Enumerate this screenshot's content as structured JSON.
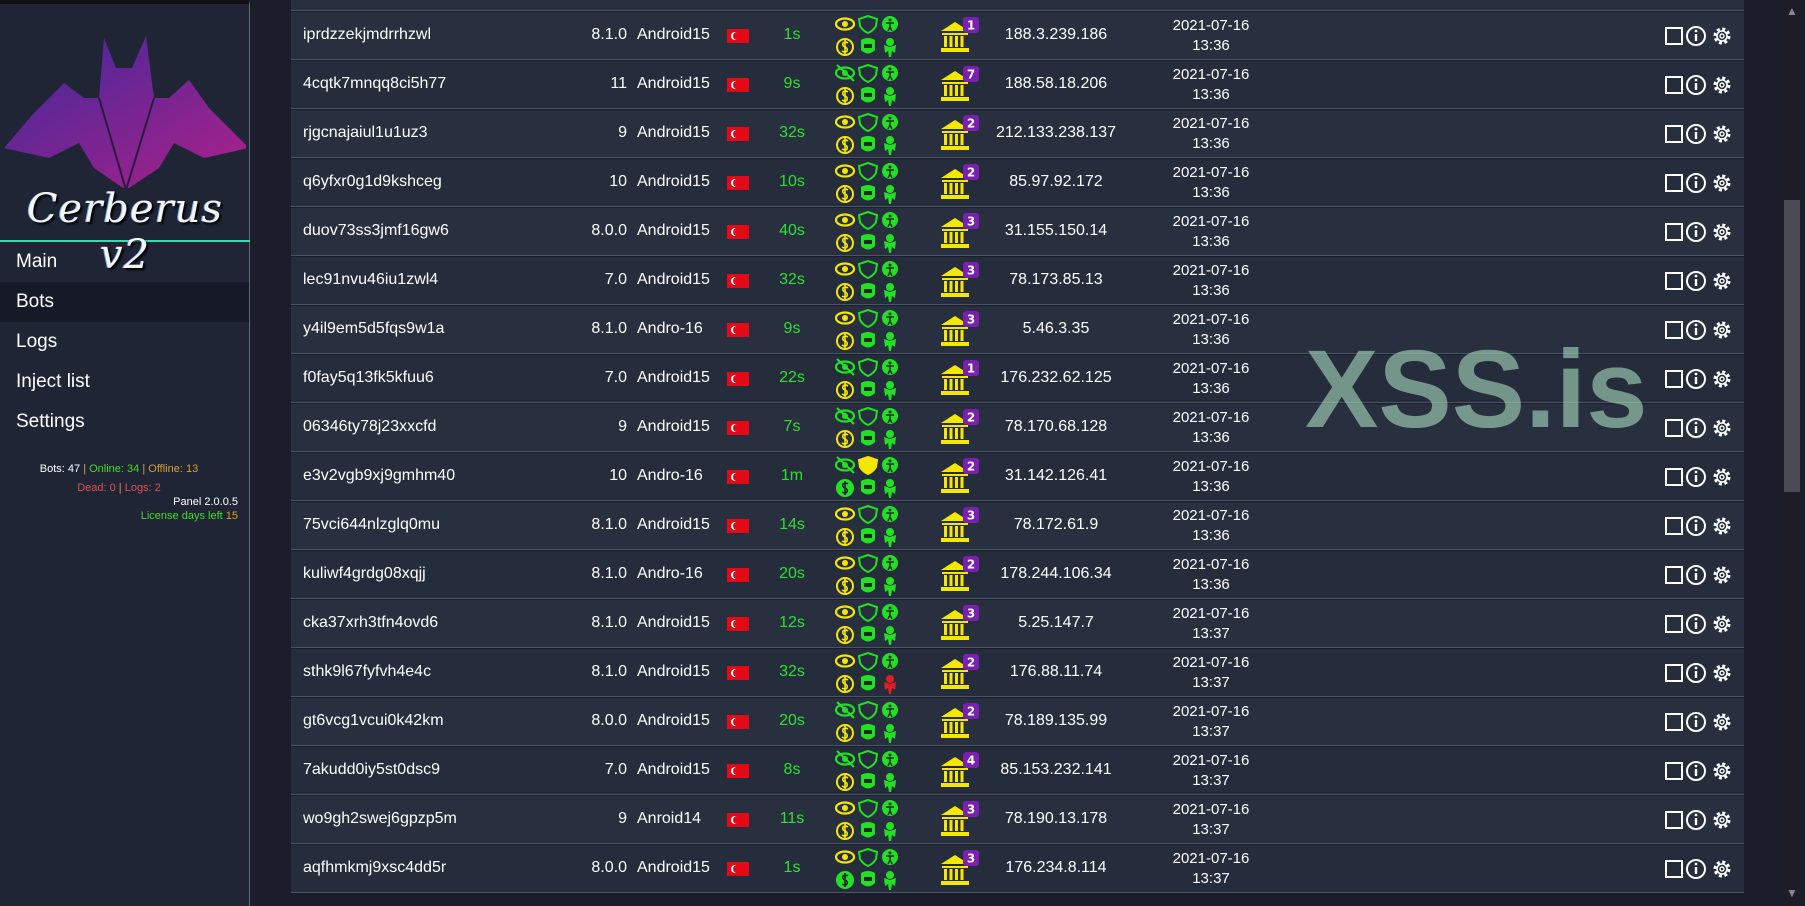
{
  "sidebar": {
    "logo_text": "Cerberus v2",
    "nav": [
      {
        "label": "Main"
      },
      {
        "label": "Bots",
        "active": true
      },
      {
        "label": "Logs"
      },
      {
        "label": "Inject list"
      },
      {
        "label": "Settings"
      }
    ],
    "stats": {
      "bots": "Bots: 47",
      "online": "Online: 34",
      "offline": "Offline: 13",
      "dead": "Dead: 0",
      "logs": "Logs: 2",
      "panel": "Panel 2.0.0.5",
      "license_label": "License days left",
      "license_days": "15"
    }
  },
  "watermark": "XSS.is",
  "colors": {
    "yellow": "#f5e800",
    "green": "#22e022",
    "red": "#e02020",
    "purple": "#7a1fb0",
    "time": "#2ee02e"
  },
  "rows": [
    {
      "id": "iprdzzekjmdrrhzwl",
      "ver": "8.1.0",
      "os": "Android15",
      "country": "TR",
      "time": "1s",
      "eye": "visible",
      "shield": "off",
      "dollar": "off",
      "mask": "ok",
      "banks": "1",
      "ip": "188.3.239.186",
      "date": "2021-07-16",
      "clock": "13:36"
    },
    {
      "id": "4cqtk7mnqq8ci5h77",
      "ver": "11",
      "os": "Android15",
      "country": "TR",
      "time": "9s",
      "eye": "hidden",
      "shield": "off",
      "dollar": "off",
      "mask": "ok",
      "banks": "7",
      "ip": "188.58.18.206",
      "date": "2021-07-16",
      "clock": "13:36"
    },
    {
      "id": "rjgcnajaiul1u1uz3",
      "ver": "9",
      "os": "Android15",
      "country": "TR",
      "time": "32s",
      "eye": "visible",
      "shield": "off",
      "dollar": "off",
      "mask": "ok",
      "banks": "2",
      "ip": "212.133.238.137",
      "date": "2021-07-16",
      "clock": "13:36"
    },
    {
      "id": "q6yfxr0g1d9kshceg",
      "ver": "10",
      "os": "Android15",
      "country": "TR",
      "time": "10s",
      "eye": "visible",
      "shield": "off",
      "dollar": "off",
      "mask": "ok",
      "banks": "2",
      "ip": "85.97.92.172",
      "date": "2021-07-16",
      "clock": "13:36"
    },
    {
      "id": "duov73ss3jmf16gw6",
      "ver": "8.0.0",
      "os": "Android15",
      "country": "TR",
      "time": "40s",
      "eye": "visible",
      "shield": "off",
      "dollar": "off",
      "mask": "ok",
      "banks": "3",
      "ip": "31.155.150.14",
      "date": "2021-07-16",
      "clock": "13:36"
    },
    {
      "id": "lec91nvu46iu1zwl4",
      "ver": "7.0",
      "os": "Android15",
      "country": "TR",
      "time": "32s",
      "eye": "visible",
      "shield": "off",
      "dollar": "off",
      "mask": "ok",
      "banks": "3",
      "ip": "78.173.85.13",
      "date": "2021-07-16",
      "clock": "13:36"
    },
    {
      "id": "y4il9em5d5fqs9w1a",
      "ver": "8.1.0",
      "os": "Andro-16",
      "country": "TR",
      "time": "9s",
      "eye": "visible",
      "shield": "off",
      "dollar": "off",
      "mask": "ok",
      "banks": "3",
      "ip": "5.46.3.35",
      "date": "2021-07-16",
      "clock": "13:36"
    },
    {
      "id": "f0fay5q13fk5kfuu6",
      "ver": "7.0",
      "os": "Android15",
      "country": "TR",
      "time": "22s",
      "eye": "hidden",
      "shield": "off",
      "dollar": "off",
      "mask": "ok",
      "banks": "1",
      "ip": "176.232.62.125",
      "date": "2021-07-16",
      "clock": "13:36"
    },
    {
      "id": "06346ty78j23xxcfd",
      "ver": "9",
      "os": "Android15",
      "country": "TR",
      "time": "7s",
      "eye": "hidden",
      "shield": "off",
      "dollar": "off",
      "mask": "ok",
      "banks": "2",
      "ip": "78.170.68.128",
      "date": "2021-07-16",
      "clock": "13:36"
    },
    {
      "id": "e3v2vgb9xj9gmhm40",
      "ver": "10",
      "os": "Andro-16",
      "country": "TR",
      "time": "1m",
      "eye": "hidden",
      "shield": "on",
      "dollar": "on",
      "mask": "ok",
      "banks": "2",
      "ip": "31.142.126.41",
      "date": "2021-07-16",
      "clock": "13:36"
    },
    {
      "id": "75vci644nlzglq0mu",
      "ver": "8.1.0",
      "os": "Android15",
      "country": "TR",
      "time": "14s",
      "eye": "visible",
      "shield": "off",
      "dollar": "off",
      "mask": "ok",
      "banks": "3",
      "ip": "78.172.61.9",
      "date": "2021-07-16",
      "clock": "13:36"
    },
    {
      "id": "kuliwf4grdg08xqjj",
      "ver": "8.1.0",
      "os": "Andro-16",
      "country": "TR",
      "time": "20s",
      "eye": "visible",
      "shield": "off",
      "dollar": "off",
      "mask": "ok",
      "banks": "2",
      "ip": "178.244.106.34",
      "date": "2021-07-16",
      "clock": "13:36"
    },
    {
      "id": "cka37xrh3tfn4ovd6",
      "ver": "8.1.0",
      "os": "Android15",
      "country": "TR",
      "time": "12s",
      "eye": "visible",
      "shield": "off",
      "dollar": "off",
      "mask": "ok",
      "banks": "3",
      "ip": "5.25.147.7",
      "date": "2021-07-16",
      "clock": "13:37"
    },
    {
      "id": "sthk9l67fyfvh4e4c",
      "ver": "8.1.0",
      "os": "Android15",
      "country": "TR",
      "time": "32s",
      "eye": "visible",
      "shield": "off",
      "dollar": "off",
      "mask": "alert",
      "banks": "2",
      "ip": "176.88.11.74",
      "date": "2021-07-16",
      "clock": "13:37"
    },
    {
      "id": "gt6vcg1vcui0k42km",
      "ver": "8.0.0",
      "os": "Android15",
      "country": "TR",
      "time": "20s",
      "eye": "hidden",
      "shield": "off",
      "dollar": "off",
      "mask": "ok",
      "banks": "2",
      "ip": "78.189.135.99",
      "date": "2021-07-16",
      "clock": "13:37"
    },
    {
      "id": "7akudd0iy5st0dsc9",
      "ver": "7.0",
      "os": "Android15",
      "country": "TR",
      "time": "8s",
      "eye": "hidden",
      "shield": "off",
      "dollar": "off",
      "mask": "ok",
      "banks": "4",
      "ip": "85.153.232.141",
      "date": "2021-07-16",
      "clock": "13:37"
    },
    {
      "id": "wo9gh2swej6gpzp5m",
      "ver": "9",
      "os": "Anroid14",
      "country": "TR",
      "time": "11s",
      "eye": "visible",
      "shield": "off",
      "dollar": "off",
      "mask": "ok",
      "banks": "3",
      "ip": "78.190.13.178",
      "date": "2021-07-16",
      "clock": "13:37"
    },
    {
      "id": "aqfhmkmj9xsc4dd5r",
      "ver": "8.0.0",
      "os": "Android15",
      "country": "TR",
      "time": "1s",
      "eye": "visible",
      "shield": "off",
      "dollar": "on",
      "mask": "ok",
      "banks": "3",
      "ip": "176.234.8.114",
      "date": "2021-07-16",
      "clock": "13:37"
    }
  ]
}
